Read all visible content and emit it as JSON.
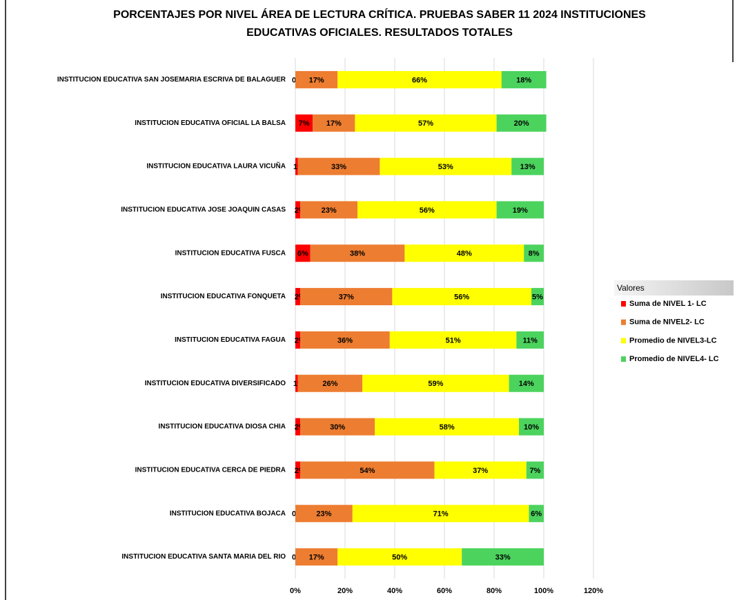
{
  "chart_data": {
    "type": "stacked-barh",
    "title": [
      "PORCENTAJES  POR NIVEL  ÁREA DE LECTURA CRÍTICA. PRUEBAS SABER 11 2024 INSTITUCIONES",
      "EDUCATIVAS OFICIALES. RESULTADOS TOTALES"
    ],
    "categories": [
      "INSTITUCION EDUCATIVA SAN JOSEMARIA ESCRIVA DE BALAGUER",
      "INSTITUCION EDUCATIVA OFICIAL LA BALSA",
      "INSTITUCION EDUCATIVA LAURA VICUÑA",
      "INSTITUCION EDUCATIVA JOSE JOAQUIN CASAS",
      "INSTITUCION EDUCATIVA FUSCA",
      "INSTITUCION EDUCATIVA FONQUETA",
      "INSTITUCION EDUCATIVA FAGUA",
      "INSTITUCION EDUCATIVA DIVERSIFICADO",
      "INSTITUCION EDUCATIVA DIOSA CHIA",
      "INSTITUCION EDUCATIVA CERCA DE PIEDRA",
      "INSTITUCION EDUCATIVA BOJACA",
      "INSTITUCION EDUCATIVA  SANTA MARIA DEL RIO"
    ],
    "series": [
      {
        "name": "Suma de NIVEL 1- LC",
        "color": "#ff0000",
        "values": [
          0,
          7,
          1,
          2,
          6,
          2,
          2,
          1,
          2,
          2,
          0,
          0
        ],
        "value_labels": [
          "0%",
          "7%",
          "1%",
          "2%",
          "6%",
          "2%",
          "2%",
          "1%",
          "2%",
          "2%",
          "0%",
          "0%"
        ]
      },
      {
        "name": "Suma de NIVEL2- LC",
        "color": "#ed7d31",
        "values": [
          17,
          17,
          33,
          23,
          38,
          37,
          36,
          26,
          30,
          54,
          23,
          17
        ],
        "value_labels": [
          "17%",
          "17%",
          "33%",
          "23%",
          "38%",
          "37%",
          "36%",
          "26%",
          "30%",
          "54%",
          "23%",
          "17%"
        ]
      },
      {
        "name": "Promedio de  NIVEL3-LC",
        "color": "#ffff00",
        "values": [
          66,
          57,
          53,
          56,
          48,
          56,
          51,
          59,
          58,
          37,
          71,
          50
        ],
        "value_labels": [
          "66%",
          "57%",
          "53%",
          "56%",
          "48%",
          "56%",
          "51%",
          "59%",
          "58%",
          "37%",
          "71%",
          "50%"
        ]
      },
      {
        "name": "Promedio de NIVEL4- LC",
        "color": "#4cd35e",
        "values": [
          18,
          20,
          13,
          19,
          8,
          5,
          11,
          14,
          10,
          7,
          6,
          33
        ],
        "value_labels": [
          "18%",
          "20%",
          "13%",
          "19%",
          "8%",
          "5%",
          "11%",
          "14%",
          "10%",
          "7%",
          "6%",
          "33%"
        ]
      }
    ],
    "xlim": [
      0,
      120
    ],
    "xticks": [
      {
        "value": 0,
        "label": "0%"
      },
      {
        "value": 20,
        "label": "20%"
      },
      {
        "value": 40,
        "label": "40%"
      },
      {
        "value": 60,
        "label": "60%"
      },
      {
        "value": 80,
        "label": "80%"
      },
      {
        "value": 100,
        "label": "100%"
      },
      {
        "value": 120,
        "label": "120%"
      }
    ],
    "grid": true,
    "legend_title": "Valores",
    "legend": "right"
  }
}
